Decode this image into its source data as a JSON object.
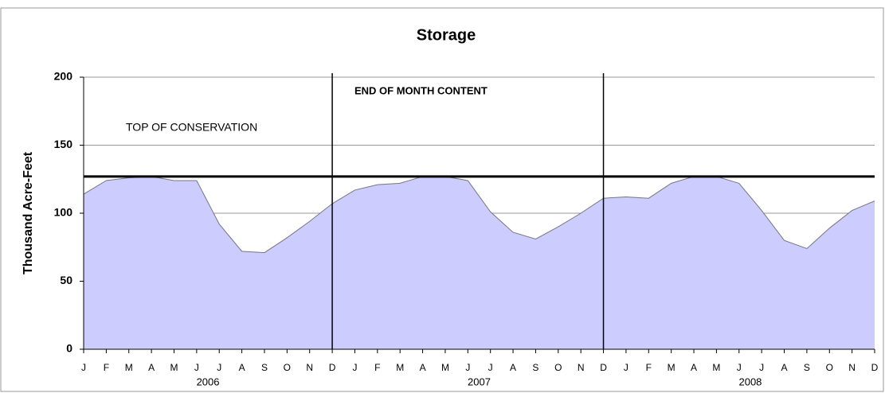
{
  "chart_data": {
    "type": "area",
    "title": "Storage",
    "y_label": "Thousand Acre-Feet",
    "categories": [
      "J",
      "F",
      "M",
      "A",
      "M",
      "J",
      "J",
      "A",
      "S",
      "O",
      "N",
      "D",
      "J",
      "F",
      "M",
      "A",
      "M",
      "J",
      "J",
      "A",
      "S",
      "O",
      "N",
      "D",
      "J",
      "F",
      "M",
      "A",
      "M",
      "J",
      "J",
      "A",
      "S",
      "O",
      "N",
      "D"
    ],
    "groups": [
      "2006",
      "2007",
      "2008"
    ],
    "series": [
      {
        "name": "End of month content",
        "color": "#ccccff",
        "values": [
          114,
          124,
          126,
          127,
          124,
          124,
          92,
          72,
          71,
          82,
          94,
          107,
          117,
          121,
          122,
          127,
          127,
          124,
          101,
          86,
          81,
          90,
          100,
          111,
          112,
          111,
          122,
          127,
          127,
          122,
          102,
          80,
          74,
          89,
          102,
          109
        ]
      }
    ],
    "reference_line": 127,
    "annotations": [
      "TOP OF CONSERVATION",
      "END OF MONTH CONTENT"
    ],
    "ylim": [
      0,
      200
    ],
    "yticks": [
      0,
      50,
      100,
      150,
      200
    ],
    "grid": true
  }
}
